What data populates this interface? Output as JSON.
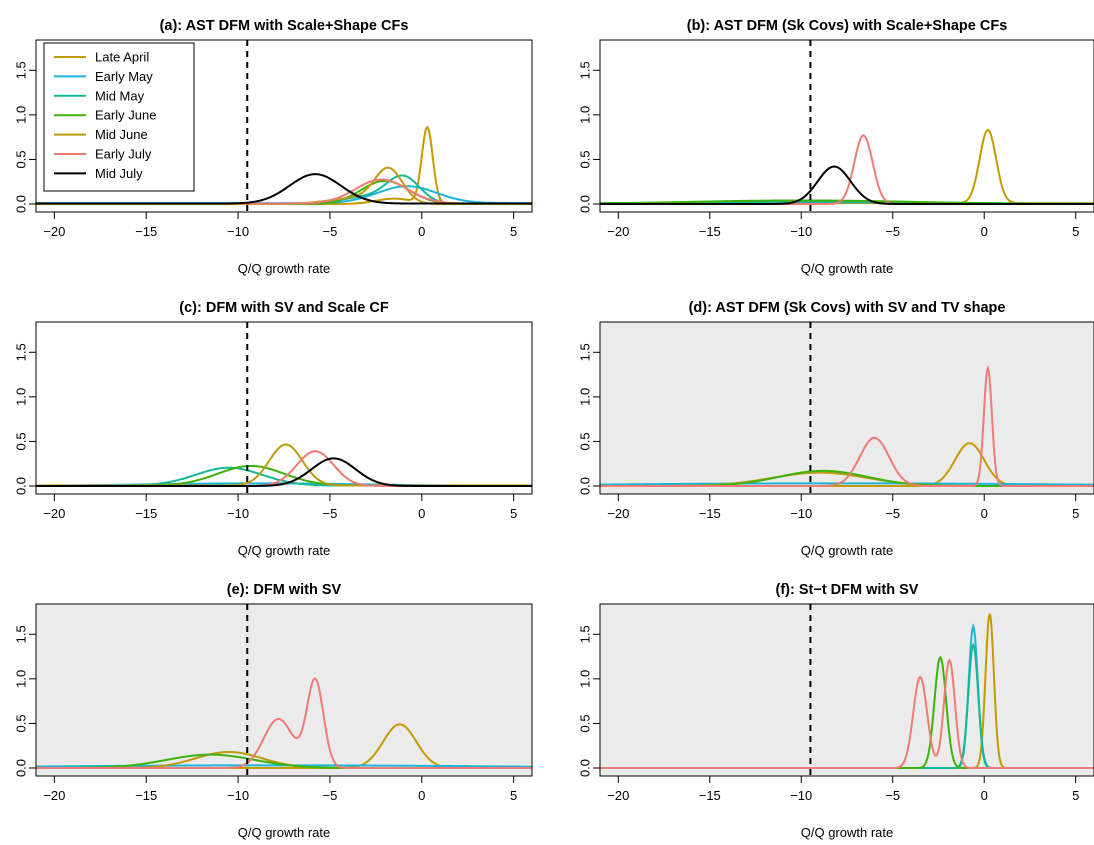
{
  "colors": {
    "Late April": "#C49A00",
    "Early May": "#1CB4D8",
    "Mid May": "#14B896",
    "Early June": "#3DB30A",
    "Mid June": "#BF9A10",
    "Early July": "#F07A74",
    "Mid July": "#000000",
    "shaded_background": "#EBEBEB",
    "plain_background": "#FFFFFF"
  },
  "legend": {
    "panel": "a",
    "placement": "top-left",
    "entries": [
      "Late April",
      "Early May",
      "Mid May",
      "Early June",
      "Mid June",
      "Early July",
      "Mid July"
    ]
  },
  "chart_data": [
    {
      "id": "a",
      "type": "line",
      "title": "(a): AST DFM with Scale+Shape CFs",
      "xlabel": "Q/Q growth rate",
      "ylabel": "",
      "xlim": [
        -21,
        6
      ],
      "ylim": [
        0,
        1.75
      ],
      "xticks": [
        -20,
        -15,
        -10,
        -5,
        0,
        5
      ],
      "yticks": [
        0.0,
        0.5,
        1.0,
        1.5
      ],
      "yticklabels": [
        "0.0",
        "0.5",
        "1.0",
        "1.5"
      ],
      "shaded": false,
      "vline": -9.5,
      "grid": false,
      "series": [
        {
          "name": "Late April",
          "comps": [
            [
              0.3,
              0.3,
              0.85
            ],
            [
              -1.5,
              1.0,
              0.06
            ]
          ]
        },
        {
          "name": "Early May",
          "comps": [
            [
              -0.8,
              1.6,
              0.19
            ]
          ],
          "floor": 0.01
        },
        {
          "name": "Mid May",
          "comps": [
            [
              -1.0,
              0.9,
              0.29
            ],
            [
              -3.0,
              1.4,
              0.08
            ]
          ]
        },
        {
          "name": "Early June",
          "comps": [
            [
              -2.0,
              1.3,
              0.26
            ]
          ]
        },
        {
          "name": "Mid June",
          "comps": [
            [
              -1.8,
              0.75,
              0.37
            ],
            [
              -3.5,
              1.5,
              0.07
            ]
          ]
        },
        {
          "name": "Early July",
          "comps": [
            [
              -2.2,
              1.4,
              0.27
            ]
          ],
          "floor": 0.005
        },
        {
          "name": "Mid July",
          "comps": [
            [
              -5.8,
              1.4,
              0.33
            ]
          ],
          "floor": 0.005
        }
      ]
    },
    {
      "id": "b",
      "type": "line",
      "title": "(b): AST DFM (Sk Covs) with Scale+Shape CFs",
      "xlabel": "Q/Q growth rate",
      "ylabel": "",
      "xlim": [
        -21,
        6
      ],
      "ylim": [
        0,
        1.75
      ],
      "xticks": [
        -20,
        -15,
        -10,
        -5,
        0,
        5
      ],
      "yticks": [
        0.0,
        0.5,
        1.0,
        1.5
      ],
      "yticklabels": [
        "0.0",
        "0.5",
        "1.0",
        "1.5"
      ],
      "shaded": false,
      "vline": -9.5,
      "grid": false,
      "series": [
        {
          "name": "Late April",
          "comps": [
            [
              0.2,
              0.45,
              0.82
            ]
          ],
          "floor": 0.01
        },
        {
          "name": "Early May",
          "comps": [
            [
              -10,
              8,
              0.02
            ]
          ]
        },
        {
          "name": "Mid May",
          "comps": [
            [
              -10,
              7,
              0.025
            ]
          ]
        },
        {
          "name": "Early June",
          "comps": [
            [
              -10,
              6,
              0.04
            ]
          ]
        },
        {
          "name": "Early July",
          "comps": [
            [
              -6.6,
              0.5,
              0.77
            ]
          ]
        },
        {
          "name": "Mid July",
          "comps": [
            [
              -8.2,
              0.9,
              0.42
            ]
          ]
        }
      ]
    },
    {
      "id": "c",
      "type": "line",
      "title": "(c): DFM with SV and Scale CF",
      "xlabel": "Q/Q growth rate",
      "ylabel": "",
      "xlim": [
        -21,
        6
      ],
      "ylim": [
        0,
        1.75
      ],
      "xticks": [
        -20,
        -15,
        -10,
        -5,
        0,
        5
      ],
      "yticks": [
        0.0,
        0.5,
        1.0,
        1.5
      ],
      "yticklabels": [
        "0.0",
        "0.5",
        "1.0",
        "1.5"
      ],
      "shaded": false,
      "vline": -9.5,
      "grid": false,
      "series": [
        {
          "name": "Early May",
          "comps": [
            [
              -9,
              6,
              0.03
            ]
          ]
        },
        {
          "name": "Mid May",
          "comps": [
            [
              -10.5,
              1.8,
              0.2
            ]
          ],
          "floor": 0.005
        },
        {
          "name": "Early June",
          "comps": [
            [
              -9.3,
              1.8,
              0.22
            ]
          ],
          "floor": 0.005
        },
        {
          "name": "Mid June",
          "comps": [
            [
              -7.4,
              0.9,
              0.46
            ]
          ],
          "floor": 0.005
        },
        {
          "name": "Early July",
          "comps": [
            [
              -5.8,
              1.0,
              0.39
            ]
          ]
        },
        {
          "name": "Mid July",
          "comps": [
            [
              -4.8,
              1.2,
              0.31
            ]
          ]
        }
      ]
    },
    {
      "id": "d",
      "type": "line",
      "title": "(d): AST DFM (Sk Covs) with SV and TV shape",
      "xlabel": "Q/Q growth rate",
      "ylabel": "",
      "xlim": [
        -21,
        6
      ],
      "ylim": [
        0,
        1.75
      ],
      "xticks": [
        -20,
        -15,
        -10,
        -5,
        0,
        5
      ],
      "yticks": [
        0.0,
        0.5,
        1.0,
        1.5
      ],
      "yticklabels": [
        "0.0",
        "0.5",
        "1.0",
        "1.5"
      ],
      "shaded": true,
      "vline": -9.5,
      "grid": false,
      "series": [
        {
          "name": "Late April",
          "comps": [
            [
              -0.8,
              0.8,
              0.48
            ]
          ]
        },
        {
          "name": "Early May",
          "comps": [
            [
              -8,
              12,
              0.03
            ]
          ]
        },
        {
          "name": "Mid June",
          "comps": [
            [
              -9.0,
              2.6,
              0.15
            ]
          ]
        },
        {
          "name": "Early June",
          "comps": [
            [
              -8.8,
              2.4,
              0.17
            ]
          ]
        },
        {
          "name": "Early July",
          "comps": [
            [
              -6.0,
              0.8,
              0.54
            ],
            [
              0.2,
              0.22,
              1.32
            ]
          ]
        }
      ]
    },
    {
      "id": "e",
      "type": "line",
      "title": "(e): DFM with SV",
      "xlabel": "Q/Q growth rate",
      "ylabel": "",
      "xlim": [
        -21,
        6
      ],
      "ylim": [
        0,
        1.75
      ],
      "xticks": [
        -20,
        -15,
        -10,
        -5,
        0,
        5
      ],
      "yticks": [
        0.0,
        0.5,
        1.0,
        1.5
      ],
      "yticklabels": [
        "0.0",
        "0.5",
        "1.0",
        "1.5"
      ],
      "shaded": true,
      "vline": -9.5,
      "grid": false,
      "series": [
        {
          "name": "Late April",
          "comps": [
            [
              -1.2,
              0.9,
              0.49
            ]
          ]
        },
        {
          "name": "Early May",
          "comps": [
            [
              -8,
              12,
              0.03
            ]
          ]
        },
        {
          "name": "Mid June",
          "comps": [
            [
              -10.5,
              1.8,
              0.18
            ]
          ]
        },
        {
          "name": "Early June",
          "comps": [
            [
              -11.5,
              2.4,
              0.15
            ]
          ]
        },
        {
          "name": "Early July",
          "comps": [
            [
              -7.8,
              0.8,
              0.55
            ],
            [
              -5.8,
              0.45,
              0.98
            ]
          ]
        }
      ]
    },
    {
      "id": "f",
      "type": "line",
      "title": "(f): St−t DFM with SV",
      "xlabel": "Q/Q growth rate",
      "ylabel": "",
      "xlim": [
        -21,
        6
      ],
      "ylim": [
        0,
        1.75
      ],
      "xticks": [
        -20,
        -15,
        -10,
        -5,
        0,
        5
      ],
      "yticks": [
        0.0,
        0.5,
        1.0,
        1.5
      ],
      "yticklabels": [
        "0.0",
        "0.5",
        "1.0",
        "1.5"
      ],
      "shaded": true,
      "vline": -9.5,
      "grid": false,
      "series": [
        {
          "name": "Late April",
          "comps": [
            [
              0.3,
              0.23,
              1.73
            ]
          ]
        },
        {
          "name": "Early May",
          "comps": [
            [
              -0.6,
              0.25,
              1.59
            ]
          ]
        },
        {
          "name": "Mid May",
          "comps": [
            [
              -0.6,
              0.27,
              1.38
            ]
          ]
        },
        {
          "name": "Early June",
          "comps": [
            [
              -2.4,
              0.32,
              1.24
            ]
          ]
        },
        {
          "name": "Early July",
          "comps": [
            [
              -3.5,
              0.38,
              1.02
            ],
            [
              -1.9,
              0.3,
              1.21
            ]
          ]
        }
      ]
    }
  ]
}
